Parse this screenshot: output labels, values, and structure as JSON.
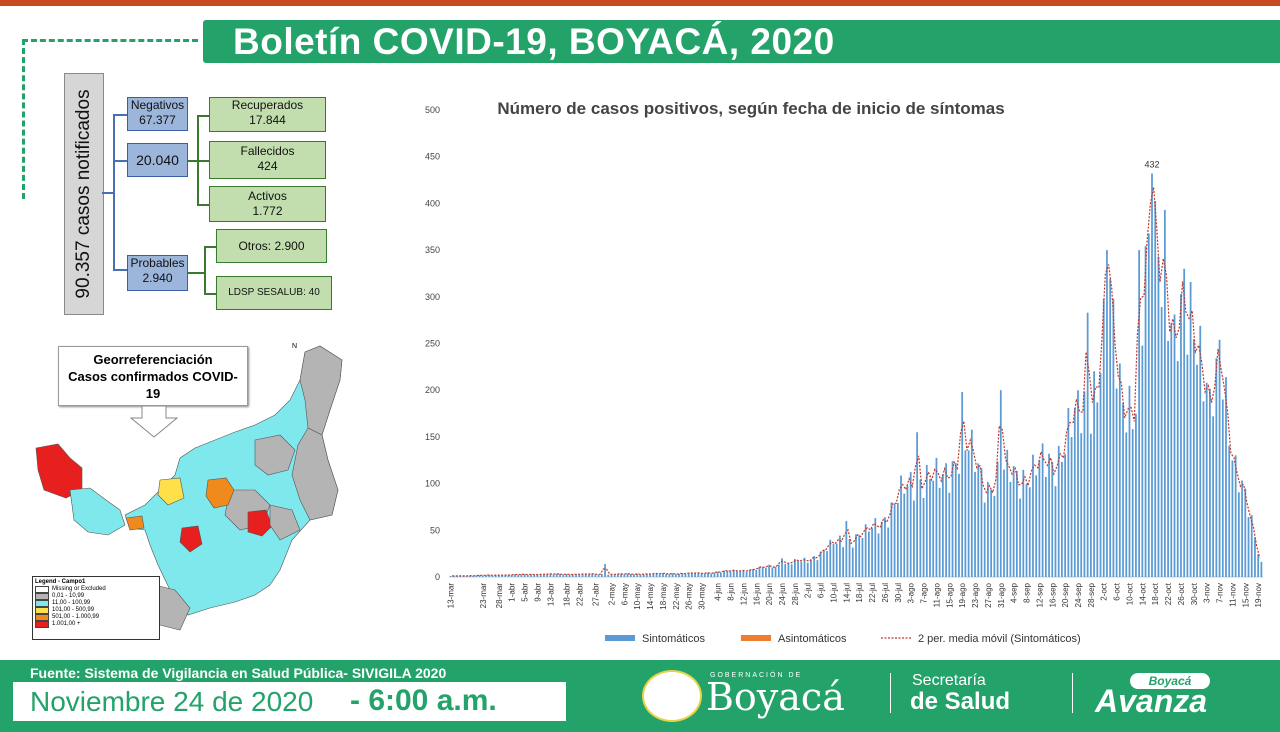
{
  "header": {
    "title": "Boletín COVID-19, BOYACÁ, 2020"
  },
  "summary": {
    "total_label": "90.357 casos notificados",
    "negativos": {
      "label": "Negativos",
      "value": "67.377"
    },
    "positivos": {
      "value": "20.040"
    },
    "recuperados": {
      "label": "Recuperados",
      "value": "17.844"
    },
    "fallecidos": {
      "label": "Fallecidos",
      "value": "424"
    },
    "activos": {
      "label": "Activos",
      "value": "1.772"
    },
    "probables": {
      "label": "Probables",
      "value": "2.940"
    },
    "otros": {
      "label": "Otros: 2.900"
    },
    "ldsp": {
      "label": "LDSP SESALUB: 40"
    }
  },
  "map": {
    "title_line1": "Georreferenciación",
    "title_line2": "Casos confirmados COVID-",
    "title_line3": "19",
    "north": "N",
    "legend_title": "Legend - Campo1",
    "legend": [
      {
        "label": "Missing or Excluded",
        "color": "#ffffff"
      },
      {
        "label": "0,01 - 10,99",
        "color": "#b4b4b4"
      },
      {
        "label": "11,00 - 100,99",
        "color": "#7ee8ec"
      },
      {
        "label": "101,00 - 500,99",
        "color": "#ffe04a"
      },
      {
        "label": "501,00 - 1.000,99",
        "color": "#f08a1c"
      },
      {
        "label": "1.001,00 +",
        "color": "#e81f1f"
      }
    ]
  },
  "chart_data": {
    "type": "bar",
    "title": "Número de casos positivos, según fecha de inicio de síntomas",
    "ylim": [
      0,
      500
    ],
    "yticks": [
      0,
      50,
      100,
      150,
      200,
      250,
      300,
      350,
      400,
      450,
      500
    ],
    "start_date": "2020-03-13",
    "xtick_labels": [
      "13-mar",
      "23-mar",
      "28-mar",
      "1-abr",
      "5-abr",
      "9-abr",
      "13-abr",
      "18-abr",
      "22-abr",
      "27-abr",
      "2-may",
      "6-may",
      "10-may",
      "14-may",
      "18-may",
      "22-may",
      "26-may",
      "30-may",
      "4-jun",
      "8-jun",
      "12-jun",
      "16-jun",
      "20-jun",
      "24-jun",
      "28-jun",
      "2-jul",
      "6-jul",
      "10-jul",
      "14-jul",
      "18-jul",
      "22-jul",
      "26-jul",
      "30-jul",
      "3-ago",
      "7-ago",
      "11-ago",
      "15-ago",
      "19-ago",
      "23-ago",
      "27-ago",
      "31-ago",
      "4-sep",
      "8-sep",
      "12-sep",
      "16-sep",
      "20-sep",
      "24-sep",
      "28-sep",
      "2-oct",
      "6-oct",
      "10-oct",
      "14-oct",
      "18-oct",
      "22-oct",
      "26-oct",
      "30-oct",
      "3-nov",
      "7-nov",
      "11-nov",
      "15-nov",
      "19-nov"
    ],
    "annotation": {
      "label": "432",
      "value": 432,
      "date": "2020-10-17"
    },
    "legend": [
      {
        "name": "Sintomáticos",
        "color": "#5b9bd5"
      },
      {
        "name": "Asintomáticos",
        "color": "#ed7d31"
      },
      {
        "name": "2 per. media móvil (Sintomáticos)",
        "color": "#c0392b"
      }
    ],
    "anchors": [
      [
        "2020-03-13",
        1
      ],
      [
        "2020-04-10",
        3
      ],
      [
        "2020-05-05",
        3
      ],
      [
        "2020-05-30",
        4
      ],
      [
        "2020-06-15",
        8
      ],
      [
        "2020-07-02",
        18
      ],
      [
        "2020-07-12",
        38
      ],
      [
        "2020-07-20",
        45
      ],
      [
        "2020-07-28",
        72
      ],
      [
        "2020-08-05",
        110
      ],
      [
        "2020-08-12",
        100
      ],
      [
        "2020-08-19",
        142
      ],
      [
        "2020-08-27",
        100
      ],
      [
        "2020-09-03",
        112
      ],
      [
        "2020-09-10",
        110
      ],
      [
        "2020-09-17",
        128
      ],
      [
        "2020-09-24",
        168
      ],
      [
        "2020-09-30",
        215
      ],
      [
        "2020-10-04",
        280
      ],
      [
        "2020-10-07",
        210
      ],
      [
        "2020-10-12",
        178
      ],
      [
        "2020-10-15",
        305
      ],
      [
        "2020-10-19",
        390
      ],
      [
        "2020-10-24",
        235
      ],
      [
        "2020-10-30",
        300
      ],
      [
        "2020-11-04",
        170
      ],
      [
        "2020-11-08",
        222
      ],
      [
        "2020-11-12",
        120
      ],
      [
        "2020-11-17",
        55
      ],
      [
        "2020-11-20",
        15
      ]
    ],
    "spikes": [
      [
        "2020-04-30",
        14
      ],
      [
        "2020-06-24",
        20
      ],
      [
        "2020-07-14",
        60
      ],
      [
        "2020-08-05",
        155
      ],
      [
        "2020-08-19",
        198
      ],
      [
        "2020-08-31",
        200
      ],
      [
        "2020-09-27",
        283
      ],
      [
        "2020-10-03",
        350
      ],
      [
        "2020-10-13",
        350
      ],
      [
        "2020-10-17",
        432
      ],
      [
        "2020-10-21",
        393
      ],
      [
        "2020-10-27",
        330
      ],
      [
        "2020-11-07",
        254
      ]
    ]
  },
  "footer": {
    "source": "Fuente: Sistema de Vigilancia en Salud Pública- SIVIGILA 2020",
    "date": "Noviembre 24 de 2020",
    "time": "- 6:00 a.m.",
    "gob_small": "GOBERNACIÓN DE",
    "boyaca": "Boyacá",
    "secretaria": "Secretaría",
    "de_salud": "de Salud",
    "avanza_badge": "Boyacá",
    "avanza": "Avanza"
  }
}
